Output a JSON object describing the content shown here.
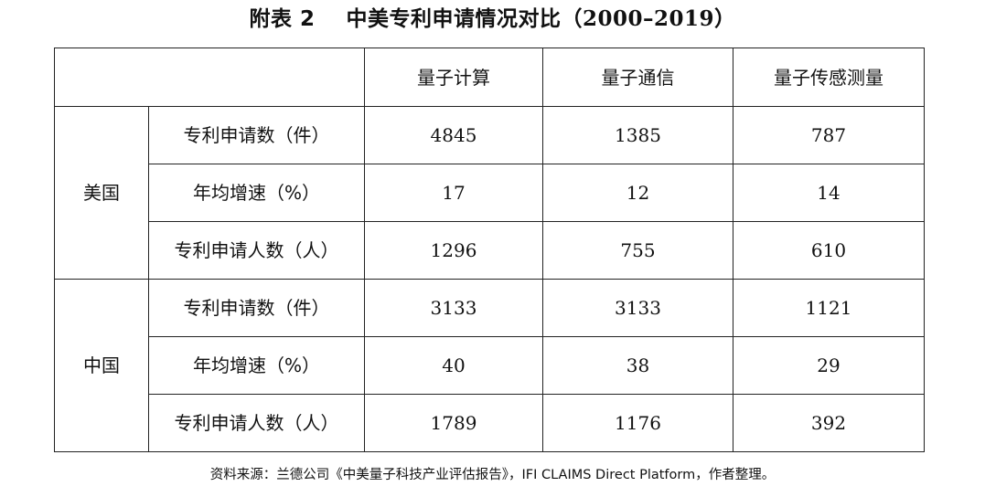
{
  "title": {
    "prefix": "附表 2",
    "main": "中美专利申请情况对比（",
    "years": "2000–2019",
    "close": "）"
  },
  "table": {
    "columns": [
      "量子计算",
      "量子通信",
      "量子传感测量"
    ],
    "groups": [
      {
        "country": "美国",
        "rows": [
          {
            "metric": "专利申请数（件）",
            "values": [
              "4845",
              "1385",
              "787"
            ]
          },
          {
            "metric": "年均增速（%）",
            "values": [
              "17",
              "12",
              "14"
            ]
          },
          {
            "metric": "专利申请人数（人）",
            "values": [
              "1296",
              "755",
              "610"
            ]
          }
        ]
      },
      {
        "country": "中国",
        "rows": [
          {
            "metric": "专利申请数（件）",
            "values": [
              "3133",
              "3133",
              "1121"
            ]
          },
          {
            "metric": "年均增速（%）",
            "values": [
              "40",
              "38",
              "29"
            ]
          },
          {
            "metric": "专利申请人数（人）",
            "values": [
              "1789",
              "1176",
              "392"
            ]
          }
        ]
      }
    ]
  },
  "source": "资料来源：兰德公司《中美量子科技产业评估报告》，IFI CLAIMS Direct Platform，作者整理。"
}
